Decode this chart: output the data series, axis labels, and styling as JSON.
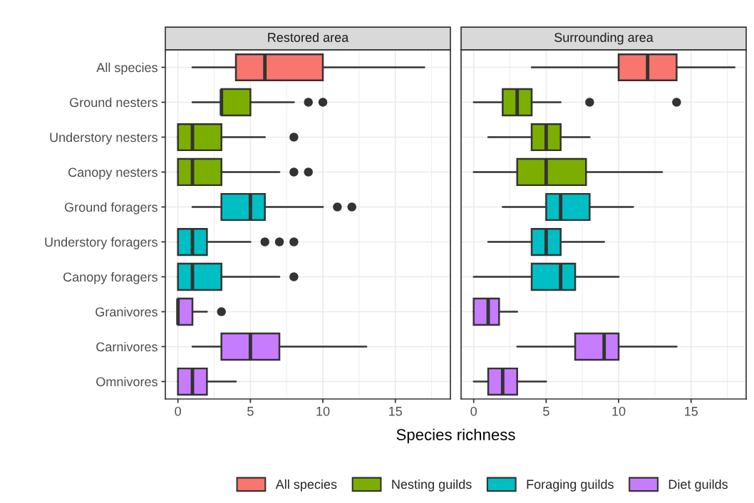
{
  "chart_data": [
    {
      "type": "box",
      "title": "Restored area",
      "xlabel": "Species richness",
      "orientation": "horizontal",
      "grid": true,
      "legend": "bottom",
      "categories": [
        "All species",
        "Ground nesters",
        "Understory nesters",
        "Canopy nesters",
        "Ground foragers",
        "Understory foragers",
        "Canopy foragers",
        "Granivores",
        "Carnivores",
        "Omnivores"
      ],
      "xlim": [
        -0.87,
        18.8
      ],
      "xticks": [
        0,
        5,
        10,
        15
      ],
      "series": [
        {
          "name": "All species",
          "color": "#f8766d",
          "boxes": [
            {
              "low": 1,
              "q1": 4,
              "median": 6,
              "q3": 10,
              "high": 17
            },
            null,
            null,
            null,
            null,
            null,
            null,
            null,
            null,
            null
          ]
        },
        {
          "name": "Nesting guilds",
          "color": "#7cae00",
          "boxes": [
            null,
            {
              "low": 1,
              "q1": 3,
              "median": 3,
              "q3": 5,
              "high": 8,
              "outliers": [
                9,
                10
              ]
            },
            {
              "low": 0,
              "q1": 0,
              "median": 1,
              "q3": 3,
              "high": 6,
              "outliers": [
                8
              ]
            },
            {
              "low": 0,
              "q1": 0,
              "median": 1,
              "q3": 3,
              "high": 7,
              "outliers": [
                8,
                9
              ]
            },
            null,
            null,
            null,
            null,
            null,
            null
          ]
        },
        {
          "name": "Foraging guilds",
          "color": "#00bfc4",
          "boxes": [
            null,
            null,
            null,
            null,
            {
              "low": 1,
              "q1": 3,
              "median": 5,
              "q3": 6,
              "high": 10,
              "outliers": [
                11,
                12
              ]
            },
            {
              "low": 0,
              "q1": 0,
              "median": 1,
              "q3": 2,
              "high": 5,
              "outliers": [
                6,
                7,
                8
              ]
            },
            {
              "low": 0,
              "q1": 0,
              "median": 1,
              "q3": 3,
              "high": 7,
              "outliers": [
                8
              ]
            },
            null,
            null,
            null
          ]
        },
        {
          "name": "Diet guilds",
          "color": "#c77cff",
          "boxes": [
            null,
            null,
            null,
            null,
            null,
            null,
            null,
            {
              "low": 0,
              "q1": 0,
              "median": 0,
              "q3": 1,
              "high": 2,
              "outliers": [
                3
              ]
            },
            {
              "low": 1,
              "q1": 3,
              "median": 5,
              "q3": 7,
              "high": 13
            },
            {
              "low": 0,
              "q1": 0,
              "median": 1,
              "q3": 2,
              "high": 4
            }
          ]
        }
      ]
    },
    {
      "type": "box",
      "title": "Surrounding area",
      "orientation": "horizontal",
      "grid": true,
      "tick_labels": "x",
      "categories": [
        null,
        null,
        null,
        null,
        null,
        null,
        null,
        null,
        null,
        null
      ],
      "xlim": [
        -0.87,
        18.8
      ],
      "xticks": [
        0,
        5,
        10,
        15
      ],
      "series": [
        {
          "color": "#f8766d",
          "boxes": [
            {
              "low": 4,
              "q1": 10,
              "median": 12,
              "q3": 14,
              "high": 18
            },
            null,
            null,
            null,
            null,
            null,
            null,
            null,
            null,
            null
          ]
        },
        {
          "color": "#7cae00",
          "boxes": [
            null,
            {
              "low": 0,
              "q1": 2,
              "median": 3,
              "q3": 4,
              "high": 6,
              "outliers": [
                8,
                14
              ]
            },
            {
              "low": 1,
              "q1": 4,
              "median": 5,
              "q3": 6,
              "high": 8
            },
            {
              "low": 0,
              "q1": 3,
              "median": 5,
              "q3": 7.75,
              "high": 13
            },
            null,
            null,
            null,
            null,
            null,
            null
          ]
        },
        {
          "color": "#00bfc4",
          "boxes": [
            null,
            null,
            null,
            null,
            {
              "low": 2,
              "q1": 5,
              "median": 6,
              "q3": 8,
              "high": 11
            },
            {
              "low": 1,
              "q1": 4,
              "median": 5,
              "q3": 6,
              "high": 9
            },
            {
              "low": 0,
              "q1": 4,
              "median": 6,
              "q3": 7,
              "high": 10
            },
            null,
            null,
            null
          ]
        },
        {
          "color": "#c77cff",
          "boxes": [
            null,
            null,
            null,
            null,
            null,
            null,
            null,
            {
              "low": 0,
              "q1": 0,
              "median": 1,
              "q3": 1.75,
              "high": 3
            },
            {
              "low": 3,
              "q1": 7,
              "median": 9,
              "q3": 10,
              "high": 14
            },
            {
              "low": 0,
              "q1": 1,
              "median": 2,
              "q3": 3,
              "high": 5
            }
          ]
        }
      ]
    }
  ]
}
